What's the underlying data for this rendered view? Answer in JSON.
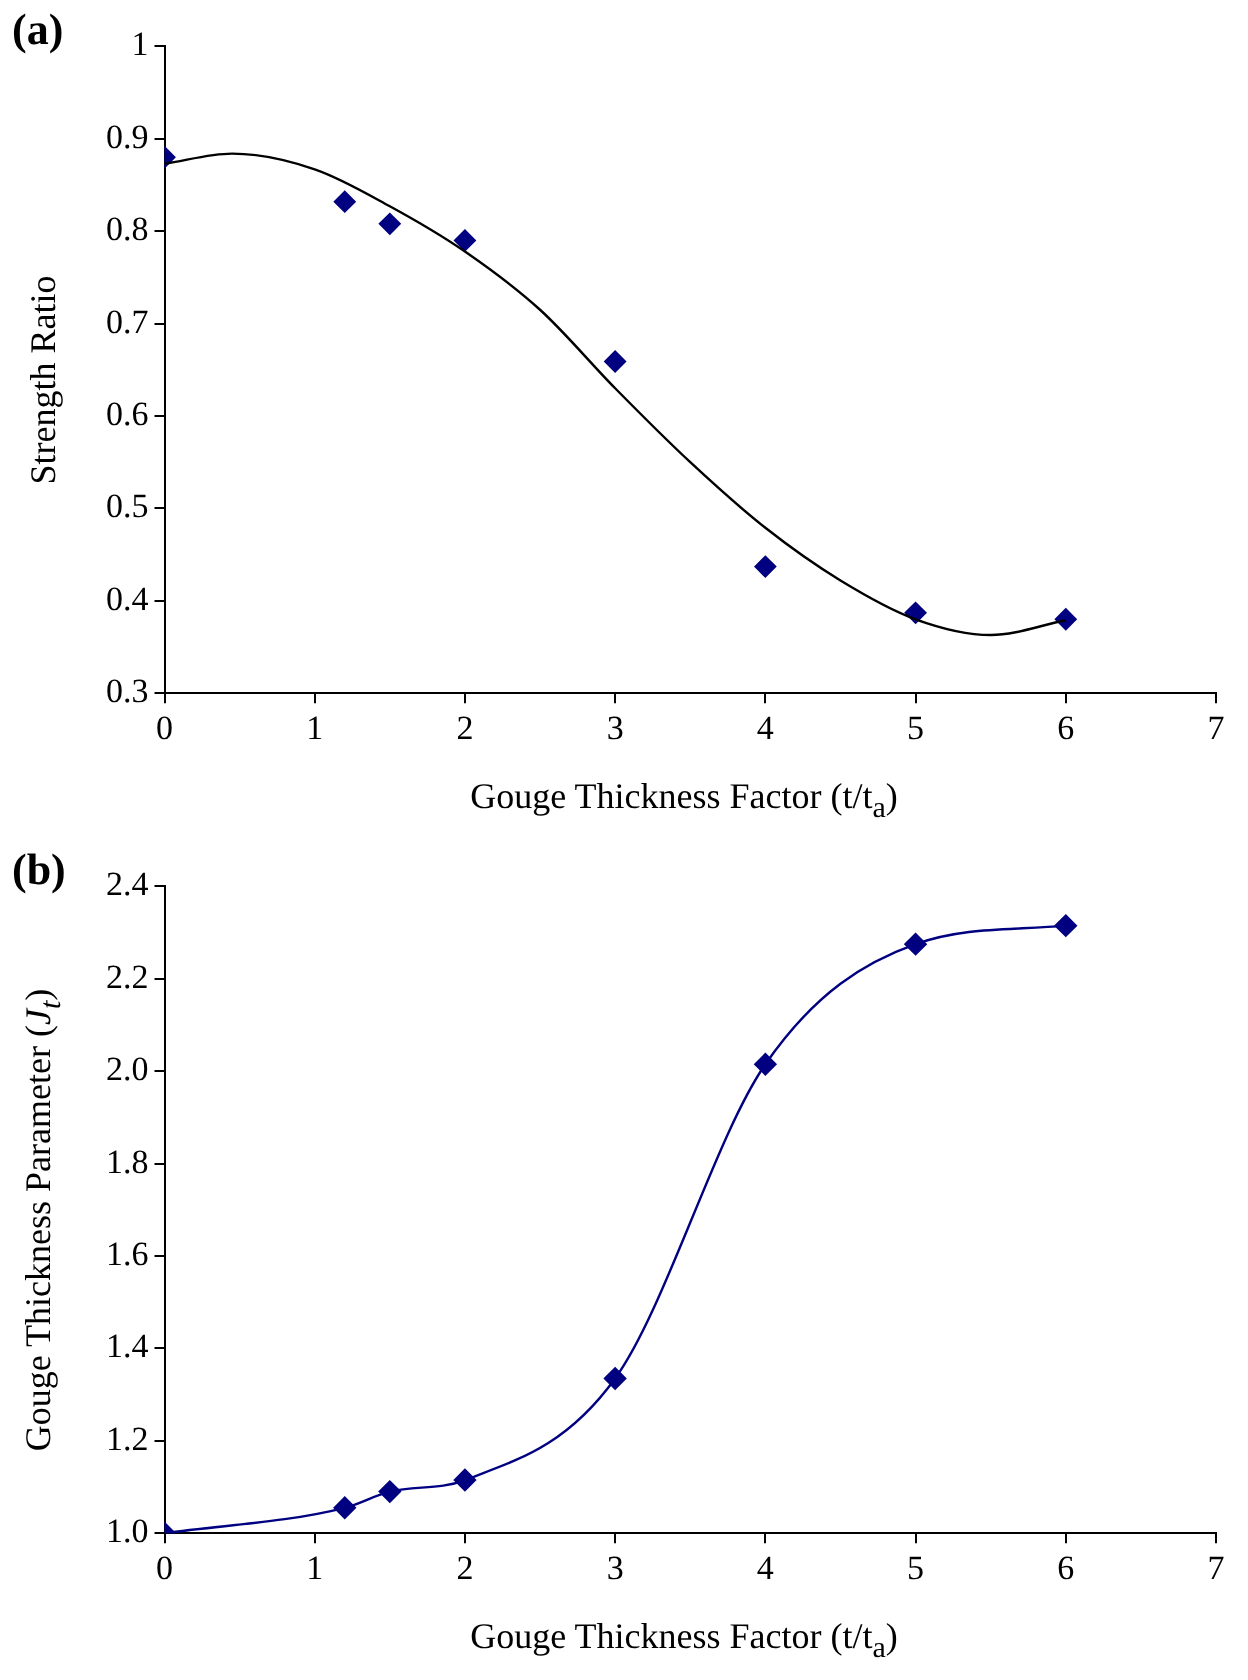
{
  "chart_data": [
    {
      "type": "scatter",
      "title": "(a)",
      "xlabel": "Gouge Thickness Factor (t/t$_{a}$)",
      "ylabel": "Strength Ratio",
      "xlim": [
        0,
        7
      ],
      "xticks": [
        0,
        1,
        2,
        3,
        4,
        5,
        6,
        7
      ],
      "ylim": [
        0.3,
        1
      ],
      "yticks": [
        0.3,
        0.4,
        0.5,
        0.6,
        0.7,
        0.8,
        0.9,
        1
      ],
      "grid": false,
      "legend": false,
      "marker": "diamond",
      "series": [
        {
          "color": "#000080",
          "x": [
            0,
            1.2,
            1.5,
            2,
            3,
            4,
            5,
            6
          ],
          "values": [
            0.88,
            0.832,
            0.808,
            0.79,
            0.659,
            0.437,
            0.387,
            0.38
          ]
        },
        {
          "type": "line",
          "color": "#000000",
          "marker": "none",
          "x": [
            0,
            0.45,
            1,
            1.5,
            2,
            2.5,
            3,
            3.5,
            4,
            4.5,
            5,
            5.5,
            6
          ],
          "values": [
            0.873,
            0.884,
            0.867,
            0.827,
            0.778,
            0.715,
            0.63,
            0.55,
            0.479,
            0.422,
            0.38,
            0.363,
            0.379
          ]
        }
      ]
    },
    {
      "type": "line",
      "title": "(b)",
      "xlabel": "Gouge Thickness Factor (t/t$_{a}$)",
      "ylabel": "Gouge Thickness Parameter (J$_{t}$)",
      "xlim": [
        0,
        7
      ],
      "xticks": [
        0,
        1,
        2,
        3,
        4,
        5,
        6,
        7
      ],
      "ylim": [
        1,
        2.4
      ],
      "yticks": [
        {
          "value": 1,
          "label": "1.0"
        },
        {
          "value": 1.2,
          "label": "1.2"
        },
        {
          "value": 1.4,
          "label": "1.4"
        },
        {
          "value": 1.6,
          "label": "1.6"
        },
        {
          "value": 1.8,
          "label": "1.8"
        },
        {
          "value": 2,
          "label": "2.0"
        },
        {
          "value": 2.2,
          "label": "2.2"
        },
        {
          "value": 2.4,
          "label": "2.4"
        }
      ],
      "grid": false,
      "legend": false,
      "marker": "diamond",
      "series": [
        {
          "color": "#000080",
          "x": [
            0,
            1.2,
            1.5,
            2,
            3,
            4,
            5,
            6
          ],
          "values": [
            1.0,
            1.055,
            1.09,
            1.115,
            1.335,
            2.015,
            2.275,
            2.315
          ]
        }
      ]
    }
  ]
}
